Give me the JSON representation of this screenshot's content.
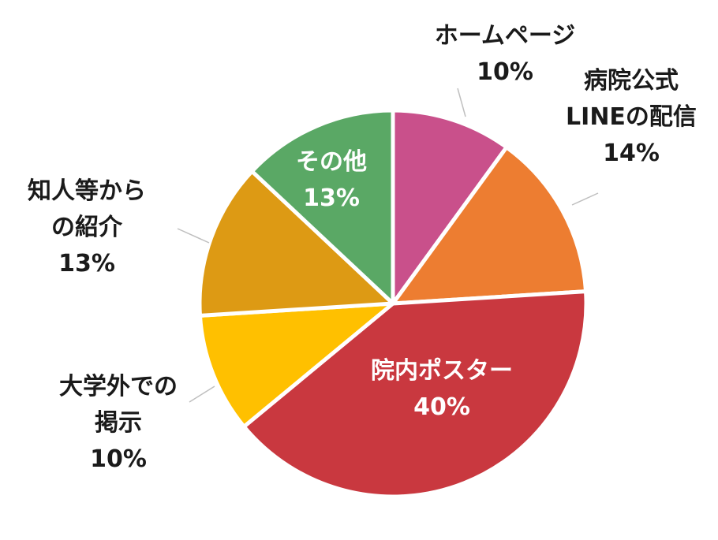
{
  "chart_data": {
    "type": "pie",
    "title": "",
    "start_angle_deg": 0,
    "direction": "clockwise",
    "slices": [
      {
        "label_lines": [
          "ホームページ"
        ],
        "percent_label": "10%",
        "value": 10,
        "color": "#C9508B",
        "label_position": "outside"
      },
      {
        "label_lines": [
          "病院公式",
          "LINEの配信"
        ],
        "percent_label": "14%",
        "value": 14,
        "color": "#ED7D31",
        "label_position": "outside"
      },
      {
        "label_lines": [
          "院内ポスター"
        ],
        "percent_label": "40%",
        "value": 40,
        "color": "#C9383F",
        "label_position": "inside"
      },
      {
        "label_lines": [
          "大学外での",
          "掲示"
        ],
        "percent_label": "10%",
        "value": 10,
        "color": "#FFC000",
        "label_position": "outside"
      },
      {
        "label_lines": [
          "知人等から",
          "の紹介"
        ],
        "percent_label": "13%",
        "value": 13,
        "color": "#DD9A14",
        "label_position": "outside"
      },
      {
        "label_lines": [
          "その他"
        ],
        "percent_label": "13%",
        "value": 13,
        "color": "#5AA865",
        "label_position": "inside"
      }
    ],
    "leader_line_color": "#BFBFBF"
  }
}
